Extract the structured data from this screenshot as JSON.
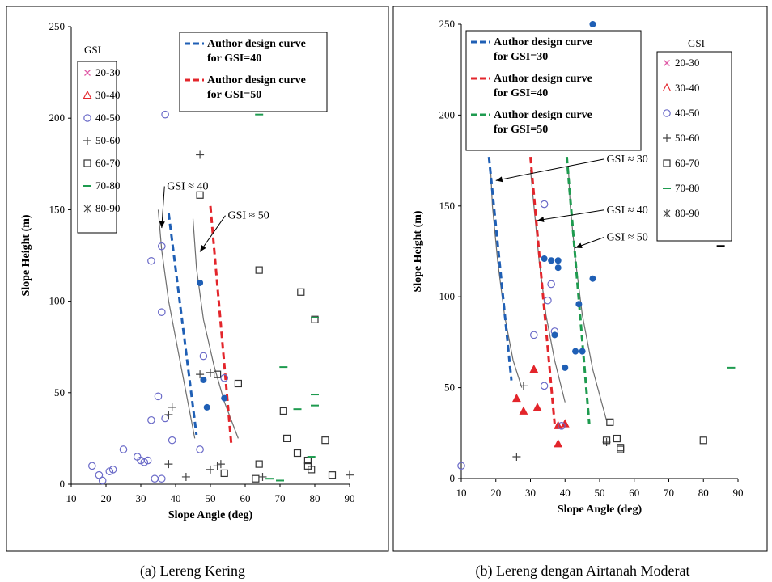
{
  "captions": {
    "a": "(a) Lereng Kering",
    "b": "(b) Lereng dengan Airtanah Moderat"
  },
  "colors": {
    "blue": "#1f5fb5",
    "red": "#e3252b",
    "green": "#1e9b4f",
    "open_marker": "#6a6ac8",
    "pink": "#e05aa6",
    "black": "#000000"
  },
  "chart_data": [
    {
      "type": "scatter",
      "xlabel": "Slope Angle (deg)",
      "ylabel": "Slope Height (m)",
      "xlim": [
        10,
        90
      ],
      "ylim": [
        0,
        250
      ],
      "xticks": [
        10,
        20,
        30,
        40,
        50,
        60,
        70,
        80,
        90
      ],
      "yticks": [
        0,
        50,
        100,
        150,
        200,
        250
      ],
      "legend_title": "GSI",
      "legend": [
        {
          "label": "20-30",
          "marker": "x"
        },
        {
          "label": "30-40",
          "marker": "triangle"
        },
        {
          "label": "40-50",
          "marker": "circle"
        },
        {
          "label": "50-60",
          "marker": "plus"
        },
        {
          "label": "60-70",
          "marker": "square"
        },
        {
          "label": "70-80",
          "marker": "dash"
        },
        {
          "label": "80-90",
          "marker": "star"
        }
      ],
      "design_legend": [
        {
          "line1": "Author design curve",
          "line2": "for GSI=40",
          "color": "blue"
        },
        {
          "line1": "Author design curve",
          "line2": "for GSI=50",
          "color": "red"
        }
      ],
      "design_curves": [
        {
          "color": "blue",
          "points": [
            [
              38,
              148
            ],
            [
              46,
              27
            ]
          ]
        },
        {
          "color": "red",
          "points": [
            [
              50,
              152
            ],
            [
              56,
              22
            ]
          ]
        }
      ],
      "fit_curves": [
        {
          "points": [
            [
              35,
              150
            ],
            [
              36,
              128
            ],
            [
              38,
              100
            ],
            [
              41,
              70
            ],
            [
              43.5,
              45
            ],
            [
              45.5,
              25
            ]
          ]
        },
        {
          "points": [
            [
              45,
              145
            ],
            [
              46,
              118
            ],
            [
              48,
              90
            ],
            [
              51,
              65
            ],
            [
              54,
              45
            ],
            [
              58,
              25
            ]
          ]
        }
      ],
      "annotations": [
        {
          "text": "GSI ≈ 40",
          "x": 37.5,
          "y": 161,
          "ax": 36,
          "ay": 140
        },
        {
          "text": "GSI ≈ 50",
          "x": 55,
          "y": 145,
          "ax": 47,
          "ay": 127
        }
      ],
      "series": [
        {
          "marker": "circle",
          "points": [
            [
              16,
              10
            ],
            [
              18,
              5
            ],
            [
              19,
              2
            ],
            [
              21,
              7
            ],
            [
              22,
              8
            ],
            [
              25,
              19
            ],
            [
              29,
              15
            ],
            [
              30,
              13
            ],
            [
              31,
              12
            ],
            [
              32,
              13
            ],
            [
              34,
              3
            ],
            [
              35,
              48
            ],
            [
              36,
              3
            ],
            [
              37,
              36
            ],
            [
              33,
              35
            ],
            [
              33,
              122
            ],
            [
              36,
              130
            ],
            [
              36,
              94
            ],
            [
              37,
              202
            ],
            [
              39,
              24
            ],
            [
              47,
              19
            ],
            [
              48,
              70
            ],
            [
              54,
              58
            ]
          ]
        },
        {
          "marker": "filled",
          "color": "blue",
          "points": [
            [
              47,
              110
            ],
            [
              48,
              57
            ],
            [
              49,
              42
            ],
            [
              54,
              47
            ]
          ]
        },
        {
          "marker": "plus",
          "points": [
            [
              38,
              11
            ],
            [
              38,
              38
            ],
            [
              39,
              42
            ],
            [
              43,
              4
            ],
            [
              47,
              180
            ],
            [
              47,
              60
            ],
            [
              50,
              8
            ],
            [
              52,
              10
            ],
            [
              53,
              11
            ],
            [
              65,
              4
            ],
            [
              90,
              5
            ],
            [
              50,
              61
            ]
          ]
        },
        {
          "marker": "square",
          "points": [
            [
              47,
              158
            ],
            [
              52,
              60
            ],
            [
              54,
              6
            ],
            [
              58,
              55
            ],
            [
              63,
              3
            ],
            [
              64,
              11
            ],
            [
              64,
              117
            ],
            [
              71,
              40
            ],
            [
              72,
              25
            ],
            [
              75,
              17
            ],
            [
              76,
              105
            ],
            [
              78,
              13
            ],
            [
              78,
              10
            ],
            [
              79,
              8
            ],
            [
              80,
              90
            ],
            [
              83,
              24
            ],
            [
              85,
              5
            ]
          ]
        },
        {
          "marker": "dash",
          "points": [
            [
              64,
              202
            ],
            [
              71,
              64
            ],
            [
              75,
              41
            ],
            [
              79,
              15
            ],
            [
              80,
              49
            ],
            [
              80,
              43
            ],
            [
              80,
              91
            ],
            [
              67,
              3
            ],
            [
              70,
              2
            ]
          ]
        }
      ]
    },
    {
      "type": "scatter",
      "xlabel": "Slope Angle (deg)",
      "ylabel": "Slope Height (m)",
      "xlim": [
        10,
        90
      ],
      "ylim": [
        0,
        250
      ],
      "xticks": [
        10,
        20,
        30,
        40,
        50,
        60,
        70,
        80,
        90
      ],
      "yticks": [
        0,
        50,
        100,
        150,
        200,
        250
      ],
      "legend_title": "GSI",
      "legend": [
        {
          "label": "20-30",
          "marker": "x"
        },
        {
          "label": "30-40",
          "marker": "triangle"
        },
        {
          "label": "40-50",
          "marker": "circle"
        },
        {
          "label": "50-60",
          "marker": "plus"
        },
        {
          "label": "60-70",
          "marker": "square"
        },
        {
          "label": "70-80",
          "marker": "dash",
          "color": "green"
        },
        {
          "label": "80-90",
          "marker": "star"
        }
      ],
      "design_legend": [
        {
          "line1": "Author design curve",
          "line2": "for GSI=30",
          "color": "blue"
        },
        {
          "line1": "Author design curve",
          "line2": "for GSI=40",
          "color": "red"
        },
        {
          "line1": "Author design curve",
          "line2": "for GSI=50",
          "color": "green"
        }
      ],
      "design_curves": [
        {
          "color": "blue",
          "points": [
            [
              18,
              177
            ],
            [
              24.5,
              54
            ]
          ]
        },
        {
          "color": "red",
          "points": [
            [
              30,
              177
            ],
            [
              37,
              30
            ]
          ]
        },
        {
          "color": "green",
          "points": [
            [
              40.5,
              177
            ],
            [
              47,
              30
            ]
          ]
        }
      ],
      "fit_curves": [
        {
          "points": [
            [
              18.5,
              170
            ],
            [
              19,
              150
            ],
            [
              20.5,
              120
            ],
            [
              22.5,
              90
            ],
            [
              25,
              65
            ],
            [
              27.5,
              50
            ]
          ]
        },
        {
          "points": [
            [
              30,
              170
            ],
            [
              31,
              150
            ],
            [
              32.5,
              120
            ],
            [
              34.5,
              90
            ],
            [
              37,
              65
            ],
            [
              40,
              42
            ]
          ]
        },
        {
          "points": [
            [
              41,
              170
            ],
            [
              41.5,
              150
            ],
            [
              43,
              120
            ],
            [
              45,
              90
            ],
            [
              48,
              60
            ],
            [
              52,
              32
            ]
          ]
        }
      ],
      "annotations": [
        {
          "text": "GSI ≈ 30",
          "x": 52,
          "y": 174,
          "ax": 20,
          "ay": 164
        },
        {
          "text": "GSI ≈ 40",
          "x": 52,
          "y": 146,
          "ax": 32,
          "ay": 142
        },
        {
          "text": "GSI ≈ 50",
          "x": 52,
          "y": 131,
          "ax": 43,
          "ay": 127
        }
      ],
      "series": [
        {
          "marker": "triangle",
          "color": "red",
          "points": [
            [
              26,
              44
            ],
            [
              28,
              37
            ],
            [
              31,
              60
            ],
            [
              32,
              39
            ],
            [
              38,
              29
            ],
            [
              38,
              19
            ],
            [
              40,
              30
            ]
          ]
        },
        {
          "marker": "circle",
          "points": [
            [
              10,
              7
            ],
            [
              31,
              79
            ],
            [
              34,
              51
            ],
            [
              34,
              151
            ],
            [
              35,
              98
            ],
            [
              36,
              107
            ],
            [
              37,
              81
            ],
            [
              39,
              29
            ]
          ]
        },
        {
          "marker": "filled",
          "color": "blue",
          "points": [
            [
              34,
              121
            ],
            [
              36,
              120
            ],
            [
              37,
              79
            ],
            [
              38,
              120
            ],
            [
              38,
              116
            ],
            [
              40,
              61
            ],
            [
              43,
              70
            ],
            [
              44,
              96
            ],
            [
              45,
              70
            ],
            [
              48,
              110
            ],
            [
              48,
              250
            ]
          ]
        },
        {
          "marker": "plus",
          "points": [
            [
              26,
              12
            ],
            [
              28,
              51
            ],
            [
              52,
              20
            ]
          ]
        },
        {
          "marker": "square",
          "points": [
            [
              52,
              21
            ],
            [
              53,
              31
            ],
            [
              55,
              22
            ],
            [
              56,
              16
            ],
            [
              56,
              17
            ],
            [
              80,
              21
            ]
          ]
        },
        {
          "marker": "dash",
          "color": "green",
          "points": [
            [
              88,
              61
            ]
          ]
        },
        {
          "marker": "dash",
          "color": "black",
          "points": [
            [
              85,
              128
            ]
          ]
        }
      ]
    }
  ]
}
